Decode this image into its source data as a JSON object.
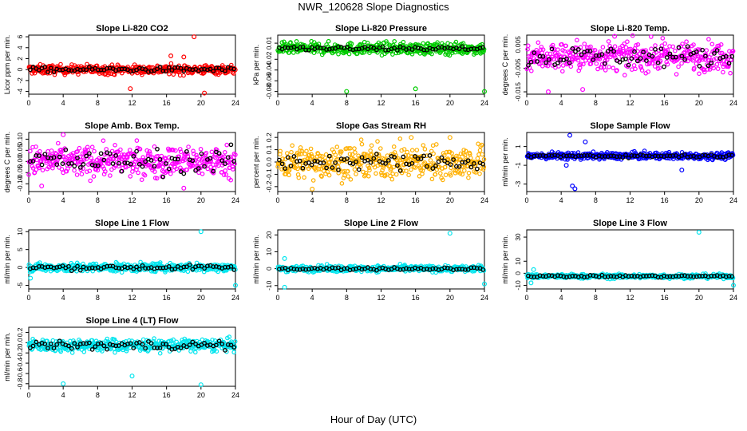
{
  "title": "NWR_120628  Slope Diagnostics",
  "xlabel": "Hour of Day (UTC)",
  "colors": {
    "primary_series": "varies per panel",
    "secondary_series": "#000000"
  },
  "chart_data": [
    {
      "type": "scatter",
      "title": "Slope Li-820 CO2",
      "ylabel": "Licor ppm per min.",
      "color": "#ff0000",
      "xlim": [
        0,
        24
      ],
      "ylim": [
        -4.5,
        6.3
      ],
      "xticks": [
        0,
        4,
        8,
        12,
        16,
        20,
        24
      ],
      "yticks": [
        -4,
        -2,
        0,
        2,
        4,
        6
      ],
      "spread": 0.7,
      "black_spread": 0.4,
      "outliers": [
        {
          "x": 19.2,
          "y": 6.0
        },
        {
          "x": 20.4,
          "y": -4.3
        },
        {
          "x": 11.8,
          "y": -3.5
        },
        {
          "x": 16.5,
          "y": 2.5
        },
        {
          "x": 18.0,
          "y": 2.3
        }
      ]
    },
    {
      "type": "scatter",
      "title": "Slope Li-820 Pressure",
      "ylabel": "kPa per min.",
      "color": "#00cc00",
      "xlim": [
        0,
        24
      ],
      "ylim": [
        -0.085,
        0.025
      ],
      "xticks": [
        0,
        4,
        8,
        12,
        16,
        20,
        24
      ],
      "yticks": [
        -0.08,
        -0.06,
        -0.04,
        -0.02,
        0.01
      ],
      "ytick_labels": [
        "-0.08",
        "-0.06",
        "-0.04",
        "-0.02",
        "0.01"
      ],
      "center": 0.0,
      "spread": 0.009,
      "black_spread": 0.004,
      "outliers": [
        {
          "x": 8.0,
          "y": -0.08
        },
        {
          "x": 16.0,
          "y": -0.075
        },
        {
          "x": 24.0,
          "y": -0.08
        }
      ]
    },
    {
      "type": "scatter",
      "title": "Slope Li-820 Temp.",
      "ylabel": "degrees C per min.",
      "color": "#ff00ff",
      "xlim": [
        0,
        24
      ],
      "ylim": [
        -0.016,
        0.009
      ],
      "xticks": [
        0,
        4,
        8,
        12,
        16,
        20,
        24
      ],
      "yticks": [
        -0.015,
        -0.005,
        0.005
      ],
      "ytick_labels": [
        "-0.015",
        "-0.005",
        "0.005"
      ],
      "center": 0.0,
      "spread": 0.005,
      "black_spread": 0.004,
      "outliers": [
        {
          "x": 10.2,
          "y": 0.0085
        },
        {
          "x": 6.5,
          "y": -0.014
        },
        {
          "x": 2.5,
          "y": -0.015
        }
      ]
    },
    {
      "type": "scatter",
      "title": "Slope Amb. Box Temp.",
      "ylabel": "degrees C per min.",
      "color": "#ff00ff",
      "xlim": [
        0,
        24
      ],
      "ylim": [
        -0.135,
        0.13
      ],
      "xticks": [
        0,
        4,
        8,
        12,
        16,
        20,
        24
      ],
      "yticks": [
        -0.1,
        -0.05,
        0.0,
        0.05,
        0.1
      ],
      "ytick_labels": [
        "-0.10",
        "-0.05",
        "0.00",
        "0.05",
        "0.10"
      ],
      "center": 0.0,
      "spread": 0.055,
      "black_spread": 0.05,
      "outliers": [
        {
          "x": 4.0,
          "y": 0.12
        },
        {
          "x": 18.0,
          "y": -0.12
        },
        {
          "x": 1.5,
          "y": -0.11
        }
      ]
    },
    {
      "type": "scatter",
      "title": "Slope Gas Stream RH",
      "ylabel": "percent per min.",
      "color": "#ffb000",
      "xlim": [
        0,
        24
      ],
      "ylim": [
        -0.24,
        0.24
      ],
      "xticks": [
        0,
        4,
        8,
        12,
        16,
        20,
        24
      ],
      "yticks": [
        -0.2,
        -0.1,
        0.0,
        0.1,
        0.2
      ],
      "ytick_labels": [
        "-0.2",
        "-0.1",
        "0.0",
        "0.1",
        "0.2"
      ],
      "center": 0.0,
      "spread": 0.11,
      "black_spread": 0.06,
      "outliers": [
        {
          "x": 4.0,
          "y": -0.22
        },
        {
          "x": 20.0,
          "y": 0.2
        },
        {
          "x": 15.5,
          "y": 0.2
        }
      ]
    },
    {
      "type": "scatter",
      "title": "Slope Sample Flow",
      "ylabel": "ml/min per min.",
      "color": "#0000ff",
      "xlim": [
        0,
        24
      ],
      "ylim": [
        -3.8,
        2.5
      ],
      "xticks": [
        0,
        4,
        8,
        12,
        16,
        20,
        24
      ],
      "yticks": [
        -3,
        -1,
        1
      ],
      "ytick_labels": [
        "-3",
        "-1",
        "1"
      ],
      "center": 0.0,
      "spread": 0.3,
      "black_spread": 0.15,
      "outliers": [
        {
          "x": 5.3,
          "y": -3.2
        },
        {
          "x": 5.6,
          "y": -3.5
        },
        {
          "x": 5.0,
          "y": 2.2
        },
        {
          "x": 6.8,
          "y": 1.5
        },
        {
          "x": 18.0,
          "y": -1.5
        },
        {
          "x": 4.6,
          "y": -1.0
        }
      ]
    },
    {
      "type": "scatter",
      "title": "Slope Line 1 Flow",
      "ylabel": "ml/min per min.",
      "color": "#00e5ee",
      "xlim": [
        0,
        24
      ],
      "ylim": [
        -6,
        10.5
      ],
      "xticks": [
        0,
        4,
        8,
        12,
        16,
        20,
        24
      ],
      "yticks": [
        -5,
        0,
        5,
        10
      ],
      "ytick_labels": [
        "-5",
        "0",
        "5",
        "10"
      ],
      "center": 0.0,
      "spread": 1.0,
      "black_spread": 0.6,
      "outliers": [
        {
          "x": 20.0,
          "y": 10.0
        },
        {
          "x": 24.0,
          "y": -5.0
        },
        {
          "x": 0.2,
          "y": -3.0
        }
      ]
    },
    {
      "type": "scatter",
      "title": "Slope Line 2 Flow",
      "ylabel": "ml/min per min.",
      "color": "#00e5ee",
      "xlim": [
        0,
        24
      ],
      "ylim": [
        -12,
        23
      ],
      "xticks": [
        0,
        4,
        8,
        12,
        16,
        20,
        24
      ],
      "yticks": [
        -10,
        0,
        10,
        20
      ],
      "ytick_labels": [
        "-10",
        "0",
        "10",
        "20"
      ],
      "center": 0.0,
      "spread": 1.5,
      "black_spread": 0.8,
      "outliers": [
        {
          "x": 20.0,
          "y": 21.0
        },
        {
          "x": 24.0,
          "y": -9.0
        },
        {
          "x": 0.8,
          "y": -11.0
        },
        {
          "x": 0.8,
          "y": 6.0
        }
      ]
    },
    {
      "type": "scatter",
      "title": "Slope Line 3 Flow",
      "ylabel": "ml/min per min.",
      "color": "#00e5ee",
      "xlim": [
        0,
        24
      ],
      "ylim": [
        -13,
        36
      ],
      "xticks": [
        0,
        4,
        8,
        12,
        16,
        20,
        24
      ],
      "yticks": [
        -10,
        0,
        10,
        30
      ],
      "ytick_labels": [
        "-10",
        "0",
        "10",
        "30"
      ],
      "center": -2.5,
      "spread": 1.5,
      "black_spread": 0.8,
      "outliers": [
        {
          "x": 20.0,
          "y": 34.0
        },
        {
          "x": 24.0,
          "y": -10.0
        },
        {
          "x": 0.5,
          "y": -8.0
        },
        {
          "x": 0.8,
          "y": 3.0
        }
      ]
    },
    {
      "type": "scatter",
      "title": "Slope Line 4 (LT) Flow",
      "ylabel": "ml/min per min.",
      "color": "#00e5ee",
      "xlim": [
        0,
        24
      ],
      "ylim": [
        -0.85,
        0.3
      ],
      "xticks": [
        0,
        4,
        8,
        12,
        16,
        20,
        24
      ],
      "yticks": [
        -0.8,
        -0.6,
        -0.4,
        -0.2,
        0.0,
        0.2
      ],
      "ytick_labels": [
        "-0.8",
        "-0.6",
        "-0.4",
        "-0.2",
        "0.0",
        "0.2"
      ],
      "center": -0.05,
      "spread": 0.1,
      "black_spread": 0.08,
      "outliers": [
        {
          "x": 4.0,
          "y": -0.8
        },
        {
          "x": 20.0,
          "y": -0.82
        },
        {
          "x": 12.0,
          "y": -0.65
        }
      ]
    }
  ]
}
